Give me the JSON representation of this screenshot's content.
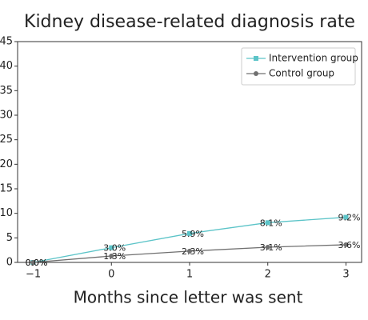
{
  "chart_data": {
    "type": "line",
    "title": "Kidney disease-related diagnosis rate",
    "x_label": "Months since letter was sent",
    "x": [
      -1,
      0,
      1,
      2,
      3
    ],
    "xlim": [
      -1.2,
      3.2
    ],
    "xticks": [
      {
        "value": -1,
        "label": "−1"
      },
      0,
      1,
      2,
      3
    ],
    "ylim": [
      0,
      45
    ],
    "yticks": [
      0,
      5,
      10,
      15,
      20,
      25,
      30,
      35,
      40,
      45
    ],
    "legend": "upper right",
    "series": [
      {
        "name": "Intervention group",
        "color": "#5cc4c8",
        "marker": "square",
        "values": [
          0.0,
          3.0,
          5.9,
          8.1,
          9.2
        ],
        "value_labels": [
          "0.0%",
          "3.0%",
          "5.9%",
          "8.1%",
          "9.2%"
        ]
      },
      {
        "name": "Control group",
        "color": "#707070",
        "marker": "circle",
        "values": [
          0.0,
          1.3,
          2.3,
          3.1,
          3.6
        ],
        "value_labels": [
          "0.0%",
          "1.3%",
          "2.3%",
          "3.1%",
          "3.6%"
        ]
      }
    ]
  }
}
